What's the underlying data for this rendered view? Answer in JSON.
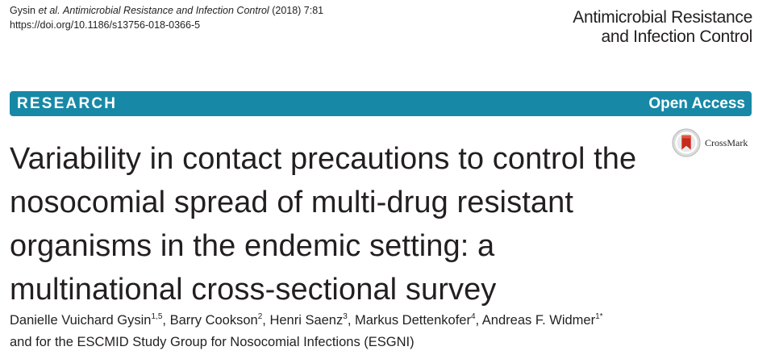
{
  "citation": {
    "authors": "Gysin",
    "etal": "et al.",
    "journal": "Antimicrobial Resistance and Infection Control",
    "year_vol": "(2018) 7:81",
    "doi": "https://doi.org/10.1186/s13756-018-0366-5"
  },
  "journal_logo": {
    "line1": "Antimicrobial Resistance",
    "line2": "and Infection Control"
  },
  "banner": {
    "article_type": "RESEARCH",
    "access": "Open Access",
    "color": "#1789a7"
  },
  "crossmark": {
    "label": "CrossMark",
    "icon": "crossmark-icon"
  },
  "title": "Variability in contact precautions to control the nosocomial spread of multi-drug resistant organisms in the endemic setting: a multinational cross-sectional survey",
  "authors": [
    {
      "name": "Danielle Vuichard Gysin",
      "sup": "1,5"
    },
    {
      "name": "Barry Cookson",
      "sup": "2"
    },
    {
      "name": "Henri Saenz",
      "sup": "3"
    },
    {
      "name": "Markus Dettenkofer",
      "sup": "4"
    },
    {
      "name": "Andreas F. Widmer",
      "sup": "1*"
    }
  ],
  "author_group": "and for the ESCMID Study Group for Nosocomial Infections (ESGNI)"
}
